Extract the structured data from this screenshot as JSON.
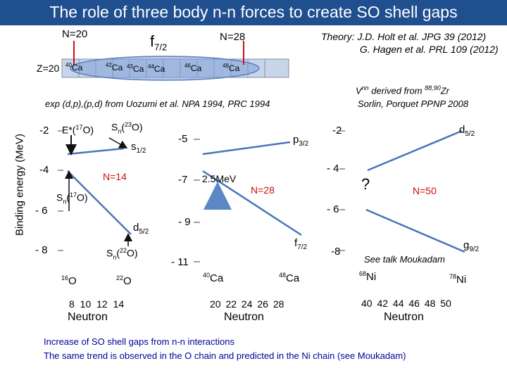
{
  "title": "The role of three body n-n forces to create SO shell gaps",
  "header": {
    "n20": "N=20",
    "n28": "N=28",
    "f72": "f",
    "f72_sub": "7/2",
    "z20": "Z=20",
    "theory1": "Theory: J.D. Holt et al. JPG 39 (2012)",
    "theory2": "G. Hagen et al. PRL 109 (2012)",
    "isotopes": [
      {
        "mass": "40",
        "sym": "Ca"
      },
      {
        "mass": "42",
        "sym": "Ca"
      },
      {
        "mass": "43",
        "sym": "Ca"
      },
      {
        "mass": "44",
        "sym": "Ca"
      },
      {
        "mass": "46",
        "sym": "Ca"
      },
      {
        "mass": "48",
        "sym": "Ca"
      }
    ]
  },
  "exp_ref": "exp (d,p),(p,d) from Uozumi et al. NPA 1994, PRC 1994",
  "vnn_line1": "V",
  "vnn_sup": "nn",
  "vnn_rest": " derived from ",
  "vnn_zr": "88,90",
  "vnn_zr_sym": "Zr",
  "vnn_line2": "Sorlin, Porquet PPNP 2008",
  "ylabel": "Binding energy (MeV)",
  "panel1": {
    "yticks": [
      "-2",
      "-4",
      "- 6",
      "- 8"
    ],
    "estar": "E*(",
    "estar_mass": "17",
    "estar_end": "O)",
    "sn23": "S",
    "sn23_sub": "n",
    "sn23_paren": "(",
    "sn23_mass": "23",
    "sn23_end": "O)",
    "s12": "s",
    "s12_sub": "1/2",
    "n14": "N=14",
    "sn17": "S",
    "sn17_sub": "n",
    "sn17_paren": "(",
    "sn17_mass": "17",
    "sn17_end": "O)",
    "d52": "d",
    "d52_sub": "5/2",
    "sn22": "S",
    "sn22_sub": "n",
    "sn22_paren": "(",
    "sn22_mass": "22",
    "sn22_end": "O)",
    "o16_mass": "16",
    "o16_sym": "O",
    "o22_mass": "22",
    "o22_sym": "O",
    "xticks": "8 10 12 14",
    "xlabel": "Neutron"
  },
  "panel2": {
    "yticks": [
      "-5",
      "-7",
      "- 9",
      "- 11"
    ],
    "p32": "p",
    "p32_sub": "3/2",
    "gap": "2.5MeV",
    "n28": "N=28",
    "f72": "f",
    "f72_sub": "7/2",
    "ca40_mass": "40",
    "ca40_sym": "Ca",
    "ca48_mass": "48",
    "ca48_sym": "Ca",
    "xticks": "20 22 24 26 28",
    "xlabel": "Neutron"
  },
  "panel3": {
    "yticks": [
      "-2",
      "- 4",
      "- 6",
      "-8"
    ],
    "d52": "d",
    "d52_sub": "5/2",
    "question": "?",
    "n50": "N=50",
    "see_talk": "See talk Moukadam",
    "g92": "g",
    "g92_sub": "9/2",
    "ni68_mass": "68",
    "ni68_sym": "Ni",
    "ni78_mass": "78",
    "ni78_sym": "Ni",
    "xticks": "40 42 44 46 48 50",
    "xlabel": "Neutron"
  },
  "footer": {
    "line1": "Increase of SO shell gaps from n-n interactions",
    "line2": "The same trend is observed in the O chain and predicted in the Ni chain (see Moukadam)"
  },
  "colors": {
    "title_bg": "#1f4f8f",
    "accent_red": "#cc1111",
    "line_blue": "#4a74b8",
    "arrow_blue": "#5b87c5",
    "cell_fill": "#c8d4e8",
    "ellipse_fill": "#7f9ed8"
  }
}
